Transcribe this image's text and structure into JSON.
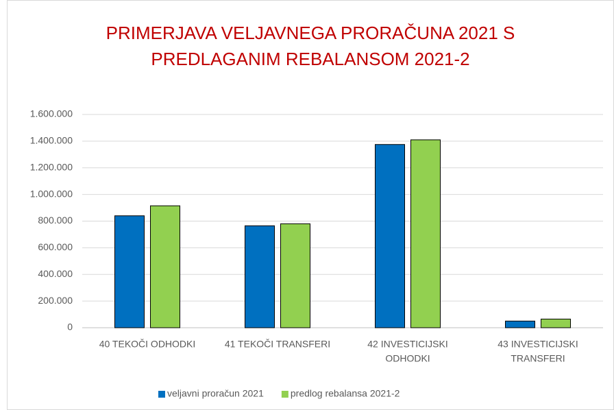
{
  "chart_data": {
    "type": "bar",
    "title": [
      "PRIMERJAVA VELJAVNEGA PRORAČUNA 2021 S",
      "PREDLAGANIM REBALANSOM 2021-2"
    ],
    "categories": [
      [
        "40 TEKOČI ODHODKI"
      ],
      [
        "41 TEKOČI TRANSFERI"
      ],
      [
        "42 INVESTICIJSKI",
        "ODHODKI"
      ],
      [
        "43 INVESTICIJSKI",
        "TRANSFERI"
      ]
    ],
    "series": [
      {
        "name": "veljavni proračun 2021",
        "color": "#0070c0",
        "values": [
          840000,
          765000,
          1375000,
          50000
        ]
      },
      {
        "name": "predlog rebalansa 2021-2",
        "color": "#92d050",
        "values": [
          915000,
          780000,
          1410000,
          65000
        ]
      }
    ],
    "ylim": [
      0,
      1600000
    ],
    "yticks": [
      0,
      {
        "value": 200000,
        "label": "200.000"
      },
      {
        "value": 400000,
        "label": "400.000"
      },
      {
        "value": 600000,
        "label": "600.000"
      },
      {
        "value": 800000,
        "label": "800.000"
      },
      {
        "value": 1000000,
        "label": "1.000.000"
      },
      {
        "value": 1200000,
        "label": "1.200.000"
      },
      {
        "value": 1400000,
        "label": "1.400.000"
      },
      {
        "value": 1600000,
        "label": "1.600.000"
      }
    ],
    "grid": true,
    "legend": "bottom"
  }
}
